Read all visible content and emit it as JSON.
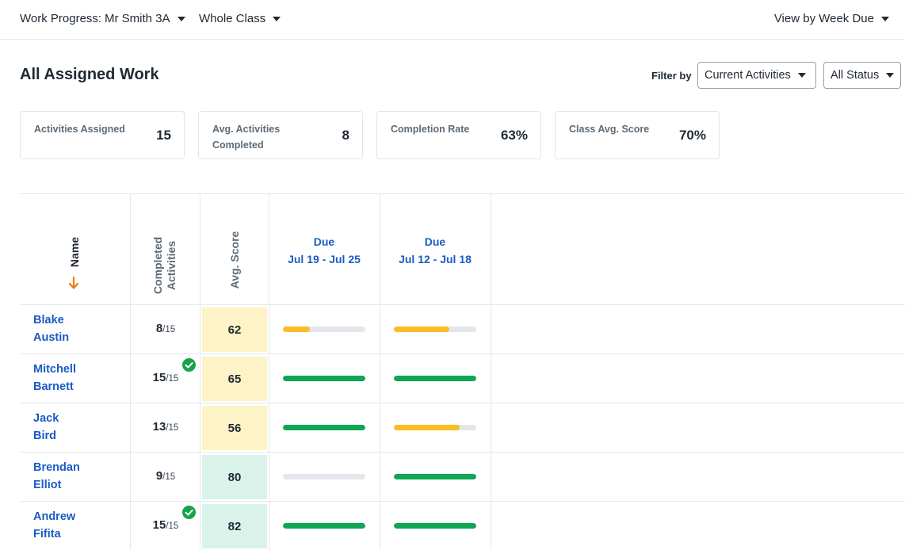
{
  "topbar": {
    "label": "Work Progress:",
    "class_select": "Mr Smith 3A",
    "group_select": "Whole Class",
    "view_select": "View by Week Due"
  },
  "page": {
    "title": "All Assigned Work",
    "filter_label": "Filter by",
    "activity_filter": "Current Activities",
    "status_filter": "All Status"
  },
  "stats": [
    {
      "label": "Activities Assigned",
      "value": "15"
    },
    {
      "label": "Avg. Activities Completed",
      "value": "8"
    },
    {
      "label": "Completion Rate",
      "value": "63%"
    },
    {
      "label": "Class Avg. Score",
      "value": "70%"
    }
  ],
  "table": {
    "columns": {
      "name": "Name",
      "completed": "Completed Activities",
      "score": "Avg. Score",
      "due1_line1": "Due",
      "due1_line2": "Jul 19 - Jul 25",
      "due2_line1": "Due",
      "due2_line2": "Jul 12 - Jul 18"
    },
    "rows": [
      {
        "first": "Blake",
        "last": "Austin",
        "completed": "8",
        "total": "/15",
        "all_done": false,
        "score": "62",
        "score_level": "mid",
        "week1": 0.33,
        "week2": 0.67
      },
      {
        "first": "Mitchell",
        "last": "Barnett",
        "completed": "15",
        "total": "/15",
        "all_done": true,
        "score": "65",
        "score_level": "mid",
        "week1": 1.0,
        "week2": 1.0
      },
      {
        "first": "Jack",
        "last": "Bird",
        "completed": "13",
        "total": "/15",
        "all_done": false,
        "score": "56",
        "score_level": "mid",
        "week1": 1.0,
        "week2": 0.8
      },
      {
        "first": "Brendan",
        "last": "Elliot",
        "completed": "9",
        "total": "/15",
        "all_done": false,
        "score": "80",
        "score_level": "high",
        "week1": 0.0,
        "week2": 1.0
      },
      {
        "first": "Andrew",
        "last": "Fifita",
        "completed": "15",
        "total": "/15",
        "all_done": true,
        "score": "82",
        "score_level": "high",
        "week1": 1.0,
        "week2": 1.0
      }
    ]
  },
  "colors": {
    "link_blue": "#1a5bc4",
    "complete_green": "#16a34a",
    "bar_green": "#0fa654",
    "bar_yellow": "#fbbd23",
    "bar_track": "#e3e7eb",
    "score_mid_bg": "#fdf3c6",
    "score_high_bg": "#d9f3ea",
    "sort_arrow": "#f27a12"
  }
}
